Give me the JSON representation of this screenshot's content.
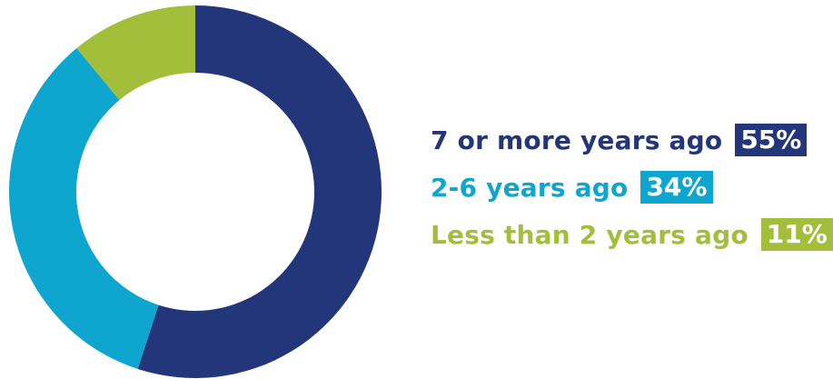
{
  "chart_data": {
    "type": "pie",
    "categories": [
      "7 or more years ago",
      "2-6 years ago",
      "Less than 2 years ago"
    ],
    "values": [
      55,
      34,
      11
    ],
    "value_labels": [
      "55%",
      "34%",
      "11%"
    ],
    "colors": [
      "#24367a",
      "#0ea5cf",
      "#a3be3a"
    ],
    "donut": true,
    "legend_position": "right"
  }
}
